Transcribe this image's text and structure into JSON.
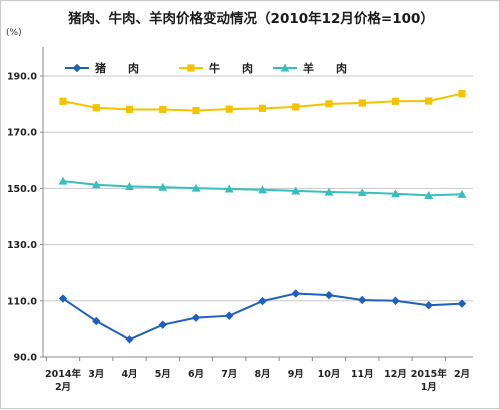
{
  "title": "猪肉、牛肉、羊肉价格变动情况（2010年12月价格=100）",
  "y_unit": "(%)",
  "colors": {
    "pork": "#1f5fbf",
    "beef": "#f5c200",
    "mutton": "#37bfc0",
    "axis": "#888888",
    "grid": "#c8c8c8"
  },
  "chart_data": {
    "type": "line",
    "title": "猪肉、牛肉、羊肉价格变动情况（2010年12月价格=100）",
    "xlabel": "",
    "ylabel": "(%)",
    "ylim": [
      90,
      195
    ],
    "yticks": [
      "90.0",
      "110.0",
      "130.0",
      "150.0",
      "170.0",
      "190.0"
    ],
    "ytick_values": [
      90,
      110,
      130,
      150,
      170,
      190
    ],
    "grid": true,
    "legend_position": "top-left",
    "x_labels": [
      {
        "line1": "2014年",
        "line2": "2月"
      },
      {
        "line1": "3月",
        "line2": ""
      },
      {
        "line1": "4月",
        "line2": ""
      },
      {
        "line1": "5月",
        "line2": ""
      },
      {
        "line1": "6月",
        "line2": ""
      },
      {
        "line1": "7月",
        "line2": ""
      },
      {
        "line1": "8月",
        "line2": ""
      },
      {
        "line1": "9月",
        "line2": ""
      },
      {
        "line1": "10月",
        "line2": ""
      },
      {
        "line1": "11月",
        "line2": ""
      },
      {
        "line1": "12月",
        "line2": ""
      },
      {
        "line1": "2015年",
        "line2": "1月"
      },
      {
        "line1": "2月",
        "line2": ""
      }
    ],
    "series": [
      {
        "name": "猪　　肉",
        "key": "pork",
        "marker": "diamond",
        "values": [
          110.8,
          102.8,
          96.3,
          101.5,
          104.0,
          104.7,
          109.9,
          112.6,
          112.0,
          110.3,
          110.0,
          108.4,
          109.0
        ]
      },
      {
        "name": "牛　　肉",
        "key": "beef",
        "marker": "square",
        "values": [
          181.0,
          178.7,
          178.1,
          178.1,
          177.7,
          178.2,
          178.5,
          179.0,
          180.1,
          180.4,
          181.0,
          181.1,
          183.7
        ]
      },
      {
        "name": "羊　　肉",
        "key": "mutton",
        "marker": "triangle",
        "values": [
          152.6,
          151.3,
          150.7,
          150.4,
          150.1,
          149.8,
          149.5,
          149.1,
          148.7,
          148.5,
          148.1,
          147.5,
          147.9
        ]
      }
    ]
  }
}
